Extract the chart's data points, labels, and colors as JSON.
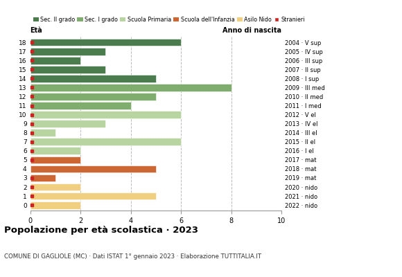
{
  "ages": [
    18,
    17,
    16,
    15,
    14,
    13,
    12,
    11,
    10,
    9,
    8,
    7,
    6,
    5,
    4,
    3,
    2,
    1,
    0
  ],
  "values": [
    6,
    3,
    2,
    3,
    5,
    8,
    5,
    4,
    6,
    3,
    1,
    6,
    2,
    2,
    5,
    1,
    2,
    5,
    2
  ],
  "stranieri": [
    1,
    1,
    1,
    1,
    1,
    1,
    1,
    1,
    1,
    1,
    1,
    1,
    1,
    1,
    0,
    1,
    1,
    1,
    1
  ],
  "bar_colors": [
    "#4a7c4e",
    "#4a7c4e",
    "#4a7c4e",
    "#4a7c4e",
    "#4a7c4e",
    "#7fad6e",
    "#7fad6e",
    "#7fad6e",
    "#b8d4a0",
    "#b8d4a0",
    "#b8d4a0",
    "#b8d4a0",
    "#b8d4a0",
    "#cc6633",
    "#cc6633",
    "#cc6633",
    "#f0d080",
    "#f0d080",
    "#f0d080"
  ],
  "right_labels": [
    "2004 · V sup",
    "2005 · IV sup",
    "2006 · III sup",
    "2007 · II sup",
    "2008 · I sup",
    "2009 · III med",
    "2010 · II med",
    "2011 · I med",
    "2012 · V el",
    "2013 · IV el",
    "2014 · III el",
    "2015 · II el",
    "2016 · I el",
    "2017 · mat",
    "2018 · mat",
    "2019 · mat",
    "2020 · nido",
    "2021 · nido",
    "2022 · nido"
  ],
  "legend_labels": [
    "Sec. II grado",
    "Sec. I grado",
    "Scuola Primaria",
    "Scuola dell'Infanzia",
    "Asilo Nido",
    "Stranieri"
  ],
  "legend_colors": [
    "#4a7c4e",
    "#7fad6e",
    "#b8d4a0",
    "#cc6633",
    "#f0d080",
    "#cc2222"
  ],
  "stranieri_color": "#cc2222",
  "title": "Popolazione per età scolastica · 2023",
  "subtitle": "COMUNE DI GAGLIOLE (MC) · Dati ISTAT 1° gennaio 2023 · Elaborazione TUTTITALIA.IT",
  "xlabel_eta": "Età",
  "xlabel_anno": "Anno di nascita",
  "xlim": [
    0,
    10
  ],
  "xticks": [
    0,
    2,
    4,
    6,
    8,
    10
  ],
  "background_color": "#ffffff",
  "grid_color": "#bbbbbb"
}
